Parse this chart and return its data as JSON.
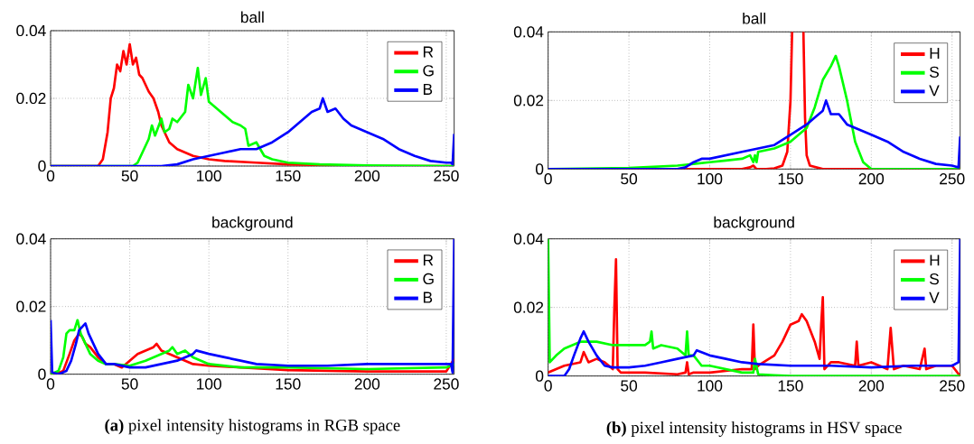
{
  "chart_data": [
    {
      "type": "line",
      "title": "ball",
      "xlim": [
        0,
        255
      ],
      "ylim": [
        0,
        0.04
      ],
      "xticks": [
        0,
        50,
        100,
        150,
        200,
        250
      ],
      "yticks": [
        0,
        0.02,
        0.04
      ],
      "grid": true,
      "legend": "top right",
      "series": [
        {
          "name": "R",
          "color": "#ff0000",
          "x": [
            0,
            30,
            33,
            36,
            38,
            40,
            42,
            44,
            46,
            48,
            50,
            52,
            54,
            56,
            58,
            60,
            62,
            65,
            68,
            70,
            75,
            80,
            90,
            100,
            110,
            130,
            150,
            180,
            200,
            255
          ],
          "values": [
            0,
            0,
            0.002,
            0.01,
            0.02,
            0.023,
            0.03,
            0.028,
            0.034,
            0.03,
            0.036,
            0.03,
            0.032,
            0.027,
            0.026,
            0.024,
            0.022,
            0.02,
            0.016,
            0.012,
            0.007,
            0.005,
            0.003,
            0.002,
            0.0015,
            0.001,
            0.0005,
            0.0002,
            0,
            0
          ]
        },
        {
          "name": "G",
          "color": "#00ff00",
          "x": [
            0,
            52,
            55,
            58,
            62,
            64,
            66,
            70,
            72,
            75,
            77,
            80,
            85,
            87,
            90,
            93,
            95,
            98,
            100,
            105,
            110,
            115,
            120,
            123,
            125,
            130,
            135,
            140,
            150,
            170,
            200,
            255
          ],
          "values": [
            0,
            0,
            0.001,
            0.004,
            0.008,
            0.012,
            0.009,
            0.014,
            0.01,
            0.011,
            0.014,
            0.013,
            0.016,
            0.024,
            0.02,
            0.029,
            0.021,
            0.026,
            0.019,
            0.017,
            0.015,
            0.013,
            0.012,
            0.011,
            0.006,
            0.007,
            0.003,
            0.002,
            0.001,
            0.0005,
            0.0002,
            0
          ]
        },
        {
          "name": "B",
          "color": "#0000ff",
          "x": [
            0,
            70,
            80,
            90,
            100,
            110,
            120,
            130,
            140,
            150,
            160,
            165,
            170,
            172,
            175,
            180,
            185,
            190,
            200,
            210,
            220,
            230,
            240,
            250,
            253,
            254,
            255
          ],
          "values": [
            0,
            0,
            0.0005,
            0.002,
            0.003,
            0.004,
            0.005,
            0.005,
            0.007,
            0.01,
            0.014,
            0.016,
            0.017,
            0.02,
            0.016,
            0.017,
            0.014,
            0.012,
            0.01,
            0.008,
            0.005,
            0.003,
            0.0015,
            0.001,
            0.001,
            0.0005,
            0.0095
          ]
        }
      ]
    },
    {
      "type": "line",
      "title": "ball",
      "xlim": [
        0,
        255
      ],
      "ylim": [
        0,
        0.04
      ],
      "xticks": [
        0,
        50,
        100,
        150,
        200,
        250
      ],
      "yticks": [
        0,
        0.02,
        0.04
      ],
      "grid": true,
      "legend": "top right",
      "series": [
        {
          "name": "H",
          "color": "#ff0000",
          "x": [
            0,
            85,
            120,
            125,
            127,
            129,
            135,
            140,
            145,
            148,
            150,
            151,
            154,
            158,
            159,
            160,
            162,
            170,
            200,
            255
          ],
          "values": [
            0,
            0,
            0,
            0.0005,
            0.001,
            0,
            0,
            0.0002,
            0.001,
            0.005,
            0.02,
            0.04,
            null,
            0.04,
            0.015,
            0.004,
            0.001,
            0,
            0,
            0
          ]
        },
        {
          "name": "S",
          "color": "#00ff00",
          "x": [
            0,
            50,
            80,
            90,
            100,
            110,
            120,
            125,
            127,
            128,
            129,
            130,
            140,
            150,
            160,
            165,
            170,
            175,
            178,
            180,
            185,
            190,
            195,
            200,
            255
          ],
          "values": [
            0,
            0.0003,
            0.001,
            0.0015,
            0.002,
            0.0025,
            0.003,
            0.004,
            0.002,
            0.004,
            0.002,
            0.005,
            0.006,
            0.008,
            0.012,
            0.018,
            0.026,
            0.03,
            0.033,
            0.03,
            0.02,
            0.008,
            0.002,
            0,
            0
          ]
        },
        {
          "name": "V",
          "color": "#0000ff",
          "x": [
            0,
            80,
            85,
            90,
            95,
            100,
            110,
            120,
            130,
            140,
            150,
            160,
            165,
            170,
            172,
            175,
            180,
            185,
            190,
            200,
            210,
            220,
            230,
            240,
            250,
            254,
            255
          ],
          "values": [
            0,
            0,
            0.0005,
            0.002,
            0.003,
            0.003,
            0.004,
            0.005,
            0.006,
            0.007,
            0.01,
            0.013,
            0.015,
            0.017,
            0.02,
            0.016,
            0.016,
            0.013,
            0.012,
            0.01,
            0.008,
            0.005,
            0.003,
            0.0015,
            0.001,
            0.0005,
            0.0095
          ]
        }
      ]
    },
    {
      "type": "line",
      "title": "background",
      "xlim": [
        0,
        255
      ],
      "ylim": [
        0,
        0.04
      ],
      "xticks": [
        0,
        50,
        100,
        150,
        200,
        250
      ],
      "yticks": [
        0,
        0.02,
        0.04
      ],
      "grid": true,
      "legend": "top right",
      "annotations": [
        "**(a)** pixel intensity histograms in RGB space"
      ],
      "series": [
        {
          "name": "R",
          "color": "#ff0000",
          "x": [
            0,
            3,
            8,
            12,
            15,
            18,
            20,
            22,
            25,
            30,
            35,
            40,
            45,
            50,
            55,
            60,
            65,
            67,
            70,
            75,
            80,
            90,
            100,
            120,
            150,
            200,
            250,
            255
          ],
          "values": [
            0,
            0,
            0.001,
            0.006,
            0.01,
            0.012,
            0.011,
            0.009,
            0.008,
            0.005,
            0.003,
            0.003,
            0.002,
            0.004,
            0.006,
            0.007,
            0.008,
            0.009,
            0.007,
            0.006,
            0.005,
            0.003,
            0.0025,
            0.002,
            0.0012,
            0.0008,
            0.0008,
            0.0045
          ]
        },
        {
          "name": "G",
          "color": "#00ff00",
          "x": [
            0,
            5,
            8,
            10,
            12,
            15,
            17,
            19,
            22,
            25,
            30,
            35,
            40,
            50,
            60,
            70,
            75,
            77,
            80,
            85,
            90,
            100,
            120,
            150,
            200,
            250,
            255
          ],
          "values": [
            0,
            0.001,
            0.005,
            0.012,
            0.013,
            0.013,
            0.016,
            0.012,
            0.009,
            0.006,
            0.004,
            0.003,
            0.003,
            0.0025,
            0.004,
            0.006,
            0.007,
            0.008,
            0.006,
            0.007,
            0.005,
            0.003,
            0.002,
            0.002,
            0.0015,
            0.002,
            0.003
          ]
        },
        {
          "name": "B",
          "color": "#0000ff",
          "x": [
            0,
            1,
            5,
            10,
            13,
            16,
            18,
            20,
            22,
            24,
            26,
            30,
            35,
            40,
            50,
            60,
            70,
            80,
            90,
            92,
            100,
            110,
            120,
            130,
            150,
            175,
            200,
            225,
            250,
            253,
            254,
            255
          ],
          "values": [
            0.016,
            0.0005,
            0,
            0.001,
            0.004,
            0.009,
            0.013,
            0.014,
            0.015,
            0.012,
            0.01,
            0.006,
            0.003,
            0.003,
            0.002,
            0.002,
            0.003,
            0.004,
            0.006,
            0.007,
            0.006,
            0.005,
            0.004,
            0.003,
            0.0025,
            0.0025,
            0.003,
            0.003,
            0.003,
            0.003,
            0.0005,
            0.04
          ]
        }
      ]
    },
    {
      "type": "line",
      "title": "background",
      "xlim": [
        0,
        255
      ],
      "ylim": [
        0,
        0.04
      ],
      "xticks": [
        0,
        50,
        100,
        150,
        200,
        250
      ],
      "yticks": [
        0,
        0.02,
        0.04
      ],
      "grid": true,
      "legend": "top right",
      "annotations": [
        "**(b)** pixel intensity histograms in HSV space"
      ],
      "series": [
        {
          "name": "H",
          "color": "#ff0000",
          "x": [
            0,
            10,
            20,
            22,
            25,
            30,
            35,
            40,
            41,
            42,
            43,
            45,
            50,
            60,
            80,
            85,
            86,
            87,
            90,
            100,
            120,
            126,
            127,
            128,
            130,
            140,
            145,
            150,
            155,
            157,
            160,
            165,
            168,
            169,
            170,
            171,
            175,
            180,
            190,
            191,
            192,
            200,
            210,
            212,
            214,
            220,
            230,
            233,
            234,
            240,
            250,
            255
          ],
          "values": [
            0.001,
            0.003,
            0.004,
            0.007,
            0.004,
            0.005,
            0.004,
            0.002,
            0.02,
            0.034,
            0.002,
            0.001,
            0.001,
            0.001,
            0.0005,
            0.001,
            0.004,
            0.0005,
            0.001,
            0.001,
            0.002,
            0.002,
            0.015,
            0.002,
            0.003,
            0.006,
            0.01,
            0.015,
            0.016,
            0.018,
            0.016,
            0.01,
            0.005,
            0.015,
            0.023,
            0.002,
            0.004,
            0.004,
            0.003,
            0.01,
            0.003,
            0.004,
            0.002,
            0.014,
            0.002,
            0.003,
            0.002,
            0.008,
            0.002,
            0.003,
            0.003,
            0
          ]
        },
        {
          "name": "S",
          "color": "#00ff00",
          "x": [
            0,
            1,
            5,
            10,
            15,
            20,
            25,
            30,
            40,
            50,
            60,
            63,
            64,
            65,
            70,
            80,
            85,
            86,
            87,
            90,
            95,
            100,
            110,
            120,
            127,
            128,
            130,
            140,
            150,
            200,
            255
          ],
          "values": [
            0.04,
            0.004,
            0.006,
            0.008,
            0.009,
            0.01,
            0.01,
            0.01,
            0.009,
            0.009,
            0.009,
            0.01,
            0.013,
            0.008,
            0.009,
            0.008,
            0.006,
            0.013,
            0.006,
            0.006,
            0.003,
            0.003,
            0.002,
            0.001,
            0.001,
            0.005,
            0.0005,
            0.0002,
            0,
            0,
            0
          ]
        },
        {
          "name": "V",
          "color": "#0000ff",
          "x": [
            0,
            10,
            13,
            16,
            20,
            22,
            25,
            30,
            35,
            40,
            50,
            60,
            70,
            80,
            90,
            92,
            100,
            110,
            120,
            130,
            150,
            175,
            200,
            225,
            250,
            254,
            255
          ],
          "values": [
            0,
            0,
            0.002,
            0.006,
            0.011,
            0.013,
            0.01,
            0.006,
            0.003,
            0.0025,
            0.0025,
            0.003,
            0.004,
            0.005,
            0.006,
            0.0075,
            0.006,
            0.005,
            0.004,
            0.0035,
            0.003,
            0.003,
            0.0025,
            0.003,
            0.003,
            0.004,
            0.04
          ]
        }
      ]
    }
  ]
}
